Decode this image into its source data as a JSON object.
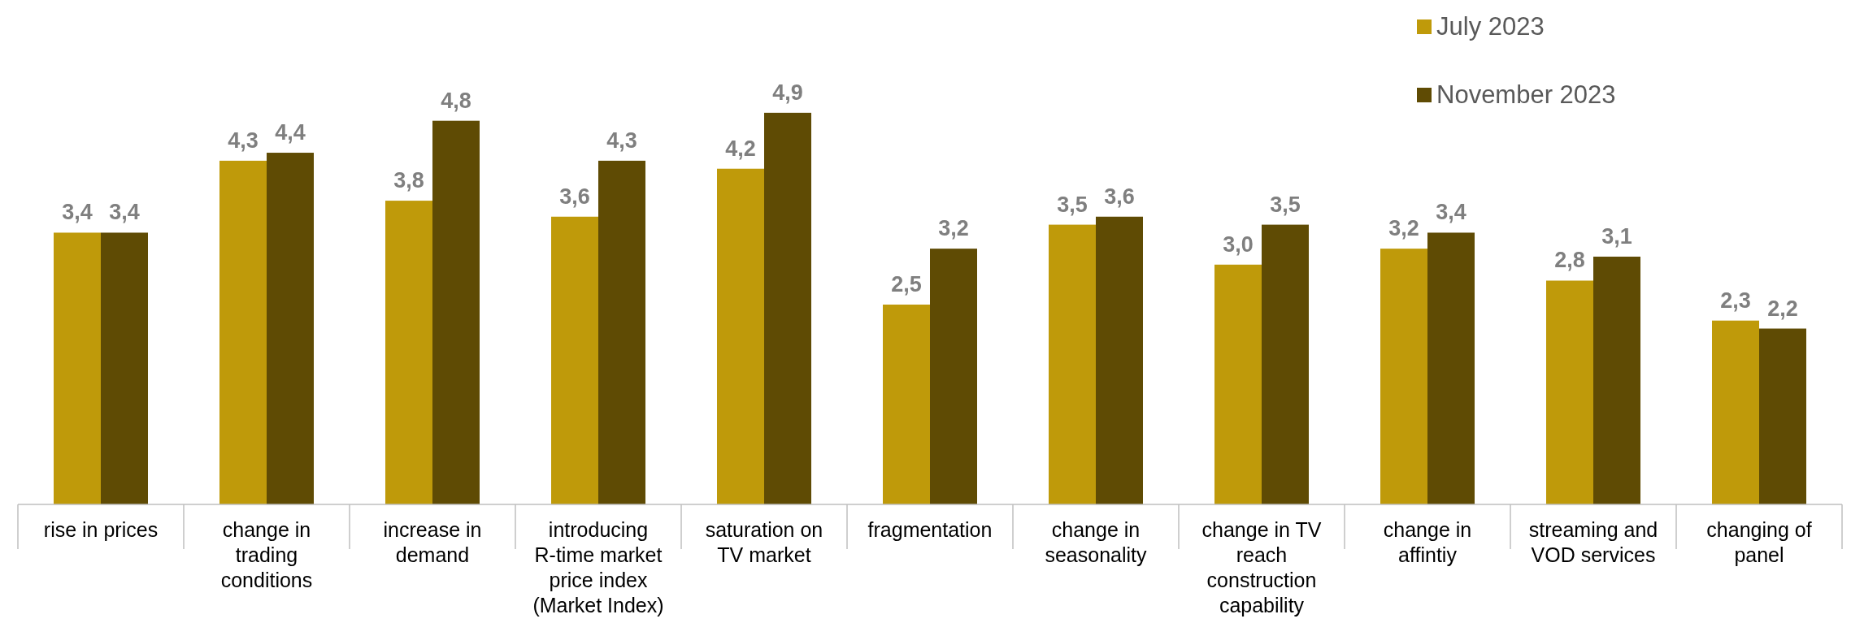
{
  "chart_data": {
    "type": "bar",
    "categories": [
      "rise in prices",
      "change in trading conditions",
      "increase in demand",
      "introducing R-time market price index (Market Index)",
      "saturation on TV market",
      "fragmentation",
      "change in seasonality",
      "change in TV reach construction capability",
      "change in affintiy",
      "streaming and VOD services",
      "changing of panel"
    ],
    "series": [
      {
        "name": "July 2023",
        "color": "#bf9a0a",
        "values": [
          3.4,
          4.3,
          3.8,
          3.6,
          4.2,
          2.5,
          3.5,
          3.0,
          3.2,
          2.8,
          2.3
        ],
        "value_labels": [
          "3,4",
          "4,3",
          "3,8",
          "3,6",
          "4,2",
          "2,5",
          "3,5",
          "3,0",
          "3,2",
          "2,8",
          "2,3"
        ]
      },
      {
        "name": "November 2023",
        "color": "#5f4b04",
        "values": [
          3.4,
          4.4,
          4.8,
          4.3,
          4.9,
          3.2,
          3.6,
          3.5,
          3.4,
          3.1,
          2.2
        ],
        "value_labels": [
          "3,4",
          "4,4",
          "4,8",
          "4,3",
          "4,9",
          "3,2",
          "3,6",
          "3,5",
          "3,4",
          "3,1",
          "2,2"
        ]
      }
    ],
    "legend": "top right"
  }
}
